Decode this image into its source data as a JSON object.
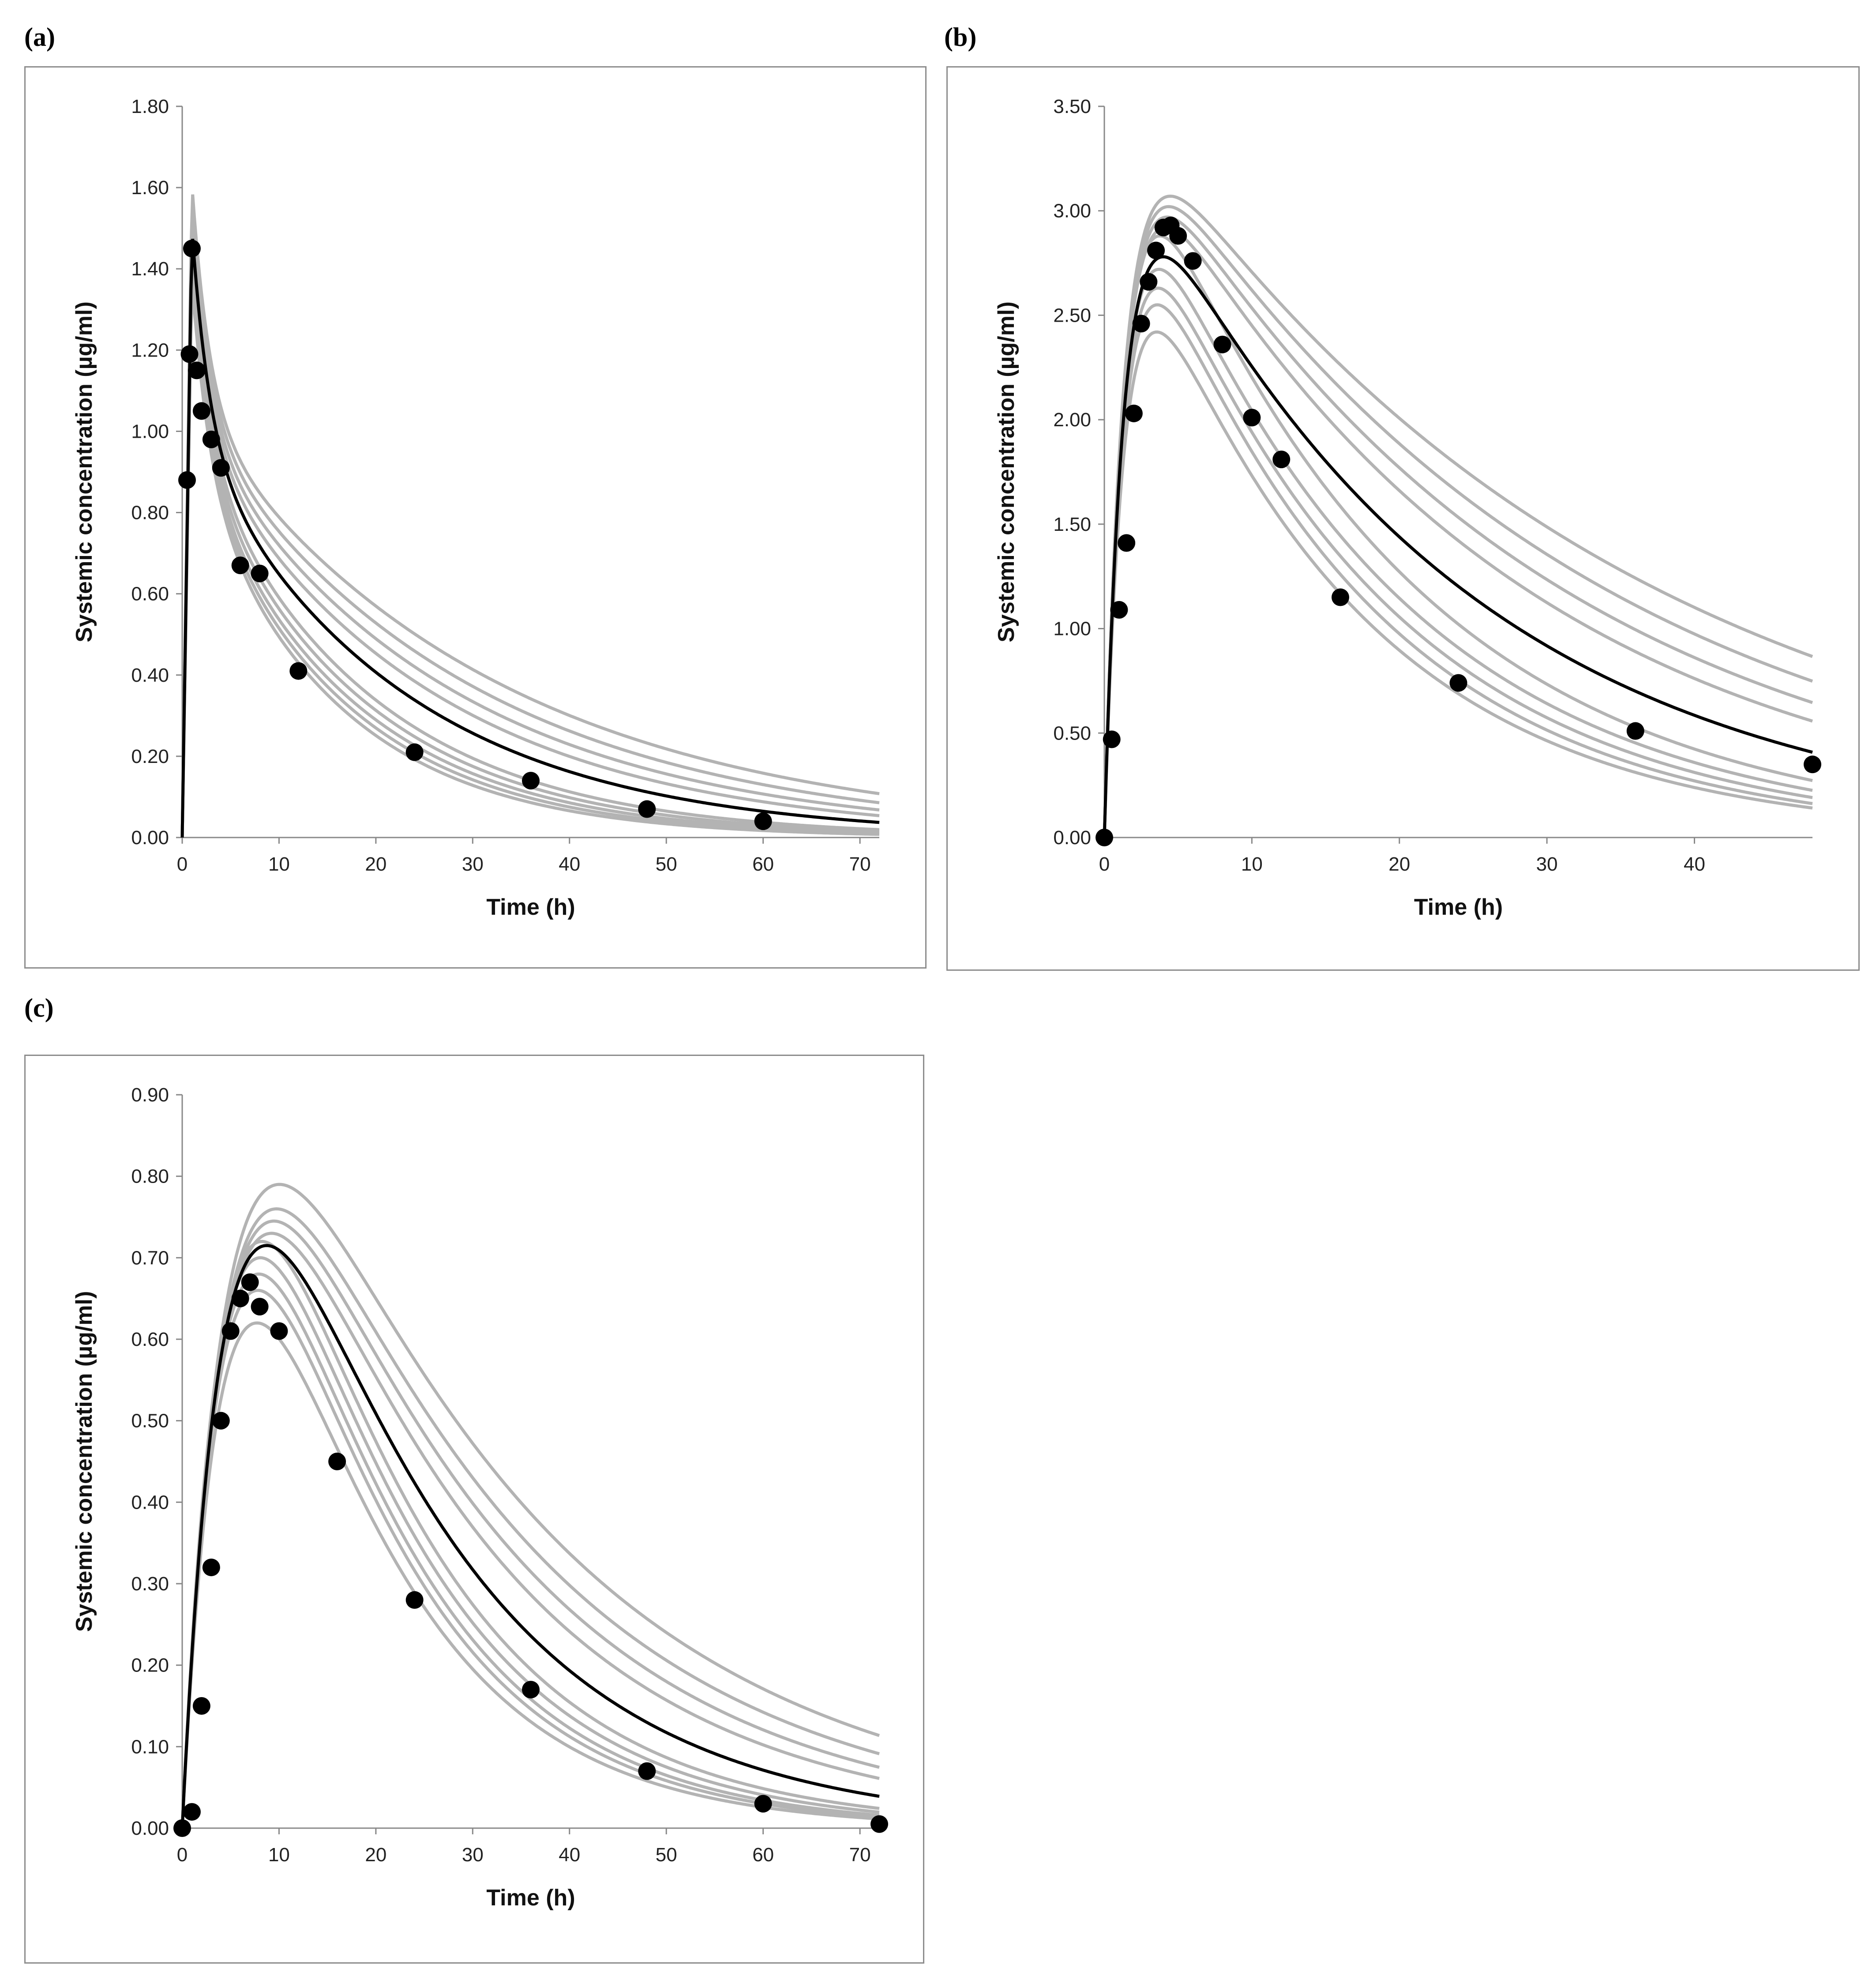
{
  "panels": [
    {
      "label": "(a)"
    },
    {
      "label": "(b)"
    },
    {
      "label": "(c)"
    }
  ],
  "colors": {
    "observed": "#000000",
    "mean_model": "#000000",
    "individual_models": "#b3b3b3",
    "frame": "#8c8c8c"
  },
  "chart_data": [
    {
      "type": "line",
      "panel": "(a)",
      "xlabel": "Time (h)",
      "ylabel": "Systemic concentration (µg/ml)",
      "xlim": [
        0,
        72
      ],
      "ylim": [
        0,
        1.8
      ],
      "xticks": [
        0,
        10,
        20,
        30,
        40,
        50,
        60,
        70
      ],
      "yticks": [
        0,
        0.2,
        0.4,
        0.6,
        0.8,
        1.0,
        1.2,
        1.4,
        1.6,
        1.8
      ],
      "ytick_labels": [
        "0.00",
        "0.20",
        "0.40",
        "0.60",
        "0.80",
        "1.00",
        "1.20",
        "1.40",
        "1.60",
        "1.80"
      ],
      "grid": false,
      "observed": {
        "x": [
          0.5,
          0.75,
          1,
          1.5,
          2,
          3,
          4,
          6,
          8,
          12,
          24,
          36,
          48,
          60
        ],
        "y": [
          0.88,
          1.19,
          1.45,
          1.15,
          1.05,
          0.98,
          0.91,
          0.67,
          0.65,
          0.41,
          0.21,
          0.14,
          0.07,
          0.04
        ]
      },
      "model": {
        "kind": "bolus",
        "tpeak": 1.0,
        "peak": 1.5,
        "a": 0.65,
        "alpha": 0.55,
        "beta": 0.046,
        "x_end": 72
      },
      "variants": [
        {
          "peak": 1.61,
          "beta": 0.032
        },
        {
          "peak": 1.58,
          "beta": 0.035
        },
        {
          "peak": 1.55,
          "beta": 0.038
        },
        {
          "peak": 1.52,
          "beta": 0.041
        },
        {
          "peak": 1.48,
          "beta": 0.055
        },
        {
          "peak": 1.45,
          "beta": 0.058
        },
        {
          "peak": 1.42,
          "beta": 0.061
        },
        {
          "peak": 1.4,
          "beta": 0.064
        },
        {
          "peak": 1.38,
          "beta": 0.067
        }
      ]
    },
    {
      "type": "line",
      "panel": "(b)",
      "xlabel": "Time (h)",
      "ylabel": "Systemic concentration (µg/ml)",
      "xlim": [
        0,
        48
      ],
      "ylim": [
        0,
        3.5
      ],
      "xticks": [
        0,
        10,
        20,
        30,
        40
      ],
      "yticks": [
        0,
        0.5,
        1.0,
        1.5,
        2.0,
        2.5,
        3.0,
        3.5
      ],
      "ytick_labels": [
        "0.00",
        "0.50",
        "1.00",
        "1.50",
        "2.00",
        "2.50",
        "3.00",
        "3.50"
      ],
      "grid": false,
      "observed": {
        "x": [
          0,
          0.5,
          1,
          1.5,
          2,
          2.5,
          3,
          3.5,
          4,
          4.5,
          5,
          6,
          8,
          10,
          12,
          16,
          24,
          36,
          48
        ],
        "y": [
          0,
          0.47,
          1.09,
          1.41,
          2.03,
          2.46,
          2.66,
          2.81,
          2.92,
          2.93,
          2.88,
          2.76,
          2.36,
          2.01,
          1.81,
          1.15,
          0.74,
          0.51,
          0.35
        ]
      },
      "model": {
        "kind": "oral",
        "ke": 0.045,
        "ka": 0.75,
        "tpeak": 3.6,
        "peak": 2.78,
        "x_end": 48
      },
      "variants": [
        {
          "ke": 0.03,
          "peak": 3.07
        },
        {
          "ke": 0.033,
          "peak": 3.02
        },
        {
          "ke": 0.036,
          "peak": 2.97
        },
        {
          "ke": 0.039,
          "peak": 2.92
        },
        {
          "ke": 0.055,
          "peak": 2.88
        },
        {
          "ke": 0.058,
          "peak": 2.72
        },
        {
          "ke": 0.061,
          "peak": 2.63
        },
        {
          "ke": 0.064,
          "peak": 2.55
        },
        {
          "ke": 0.066,
          "peak": 2.42
        }
      ]
    },
    {
      "type": "line",
      "panel": "(c)",
      "xlabel": "Time (h)",
      "ylabel": "Systemic concentration (µg/ml)",
      "xlim": [
        0,
        72
      ],
      "ylim": [
        0,
        0.9
      ],
      "xticks": [
        0,
        10,
        20,
        30,
        40,
        50,
        60,
        70
      ],
      "yticks": [
        0,
        0.1,
        0.2,
        0.3,
        0.4,
        0.5,
        0.6,
        0.7,
        0.8,
        0.9
      ],
      "ytick_labels": [
        "0.00",
        "0.10",
        "0.20",
        "0.30",
        "0.40",
        "0.50",
        "0.60",
        "0.70",
        "0.80",
        "0.90"
      ],
      "grid": false,
      "observed": {
        "x": [
          0,
          1,
          2,
          3,
          4,
          5,
          6,
          7,
          8,
          10,
          16,
          24,
          36,
          48,
          60,
          72
        ],
        "y": [
          0,
          0.02,
          0.15,
          0.32,
          0.5,
          0.61,
          0.65,
          0.67,
          0.64,
          0.61,
          0.45,
          0.28,
          0.17,
          0.07,
          0.03,
          0.005
        ]
      },
      "model": {
        "kind": "oral",
        "ke": 0.05,
        "ka": 0.22,
        "tpeak": 8.5,
        "peak": 0.715,
        "x_end": 72
      },
      "variants": [
        {
          "ke": 0.034,
          "peak": 0.79
        },
        {
          "ke": 0.037,
          "peak": 0.76
        },
        {
          "ke": 0.04,
          "peak": 0.745
        },
        {
          "ke": 0.043,
          "peak": 0.73
        },
        {
          "ke": 0.058,
          "peak": 0.72
        },
        {
          "ke": 0.061,
          "peak": 0.7
        },
        {
          "ke": 0.064,
          "peak": 0.68
        },
        {
          "ke": 0.066,
          "peak": 0.66
        },
        {
          "ke": 0.068,
          "peak": 0.62
        }
      ]
    }
  ]
}
